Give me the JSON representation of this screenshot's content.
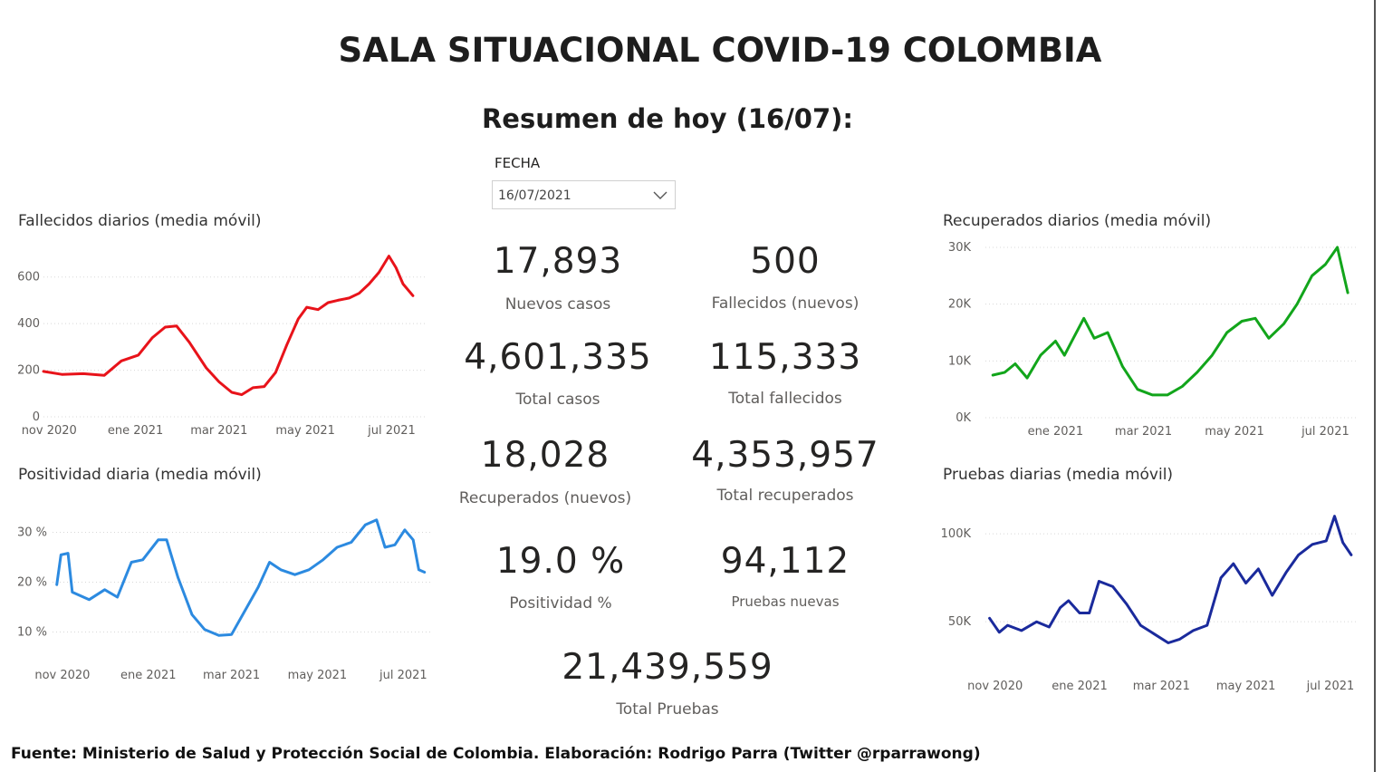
{
  "header": {
    "title": "SALA SITUACIONAL COVID-19 COLOMBIA",
    "subtitle": "Resumen de hoy (16/07):"
  },
  "filter": {
    "label": "FECHA",
    "value": "16/07/2021"
  },
  "kpis": [
    {
      "value": "17,893",
      "label": "Nuevos casos"
    },
    {
      "value": "500",
      "label": "Fallecidos (nuevos)"
    },
    {
      "value": "4,601,335",
      "label": "Total casos"
    },
    {
      "value": "115,333",
      "label": "Total fallecidos"
    },
    {
      "value": "18,028",
      "label": "Recuperados (nuevos)"
    },
    {
      "value": "4,353,957",
      "label": "Total recuperados"
    },
    {
      "value": "19.0 %",
      "label": "Positividad %"
    },
    {
      "value": "94,112",
      "label": "Pruebas nuevas"
    },
    {
      "value": "21,439,559",
      "label": "Total Pruebas"
    }
  ],
  "footer": "Fuente: Ministerio de Salud y Protección Social de Colombia. Elaboración: Rodrigo Parra (Twitter @rparrawong)",
  "chart_data": [
    {
      "type": "line",
      "title": "Fallecidos diarios (media móvil)",
      "color": "#e8131a",
      "x": [
        "2020-10-28",
        "2020-11-10",
        "2020-11-25",
        "2020-12-10",
        "2020-12-22",
        "2021-01-03",
        "2021-01-13",
        "2021-01-22",
        "2021-01-30",
        "2021-02-08",
        "2021-02-20",
        "2021-03-01",
        "2021-03-10",
        "2021-03-17",
        "2021-03-25",
        "2021-04-02",
        "2021-04-10",
        "2021-04-18",
        "2021-04-26",
        "2021-05-02",
        "2021-05-10",
        "2021-05-17",
        "2021-05-24",
        "2021-06-01",
        "2021-06-08",
        "2021-06-15",
        "2021-06-22",
        "2021-06-29",
        "2021-07-04",
        "2021-07-09",
        "2021-07-16"
      ],
      "values": [
        195,
        182,
        185,
        178,
        240,
        265,
        340,
        385,
        390,
        320,
        210,
        150,
        105,
        95,
        125,
        130,
        190,
        310,
        420,
        470,
        460,
        490,
        500,
        510,
        530,
        570,
        620,
        690,
        640,
        570,
        520
      ],
      "yticks": [
        0,
        200,
        400,
        600
      ],
      "ylim": [
        0,
        700
      ],
      "xticks": [
        "nov 2020",
        "ene 2021",
        "mar 2021",
        "may 2021",
        "jul 2021"
      ]
    },
    {
      "type": "line",
      "title": "Positividad diaria (media móvil)",
      "color": "#2c8ae0",
      "x": [
        "2020-10-28",
        "2020-10-31",
        "2020-11-05",
        "2020-11-08",
        "2020-11-20",
        "2020-12-01",
        "2020-12-10",
        "2020-12-20",
        "2020-12-28",
        "2021-01-08",
        "2021-01-14",
        "2021-01-22",
        "2021-02-01",
        "2021-02-10",
        "2021-02-20",
        "2021-03-01",
        "2021-03-10",
        "2021-03-20",
        "2021-03-28",
        "2021-04-05",
        "2021-04-15",
        "2021-04-25",
        "2021-05-05",
        "2021-05-15",
        "2021-05-25",
        "2021-06-04",
        "2021-06-12",
        "2021-06-18",
        "2021-06-25",
        "2021-07-02",
        "2021-07-08",
        "2021-07-12",
        "2021-07-16"
      ],
      "values": [
        19.5,
        25.5,
        25.8,
        18,
        16.5,
        18.5,
        17,
        24,
        24.5,
        28.5,
        28.5,
        21,
        13.5,
        10.5,
        9.3,
        9.5,
        14,
        19,
        24,
        22.5,
        21.5,
        22.5,
        24.5,
        27,
        28,
        31.5,
        32.5,
        27,
        27.5,
        30.5,
        28.5,
        22.5,
        22
      ],
      "yticks": [
        "10 %",
        "20 %",
        "30 %"
      ],
      "ytick_values": [
        10,
        20,
        30
      ],
      "ylim": [
        5,
        35
      ],
      "xticks": [
        "nov 2020",
        "ene 2021",
        "mar 2021",
        "may 2021",
        "jul 2021"
      ]
    },
    {
      "type": "line",
      "title": "Recuperados diarios (media móvil)",
      "color": "#12a51b",
      "x": [
        "2020-11-20",
        "2020-11-28",
        "2020-12-05",
        "2020-12-13",
        "2020-12-22",
        "2021-01-01",
        "2021-01-07",
        "2021-01-13",
        "2021-01-20",
        "2021-01-27",
        "2021-02-05",
        "2021-02-15",
        "2021-02-25",
        "2021-03-07",
        "2021-03-17",
        "2021-03-27",
        "2021-04-06",
        "2021-04-16",
        "2021-04-26",
        "2021-05-06",
        "2021-05-15",
        "2021-05-24",
        "2021-06-03",
        "2021-06-12",
        "2021-06-22",
        "2021-07-01",
        "2021-07-09",
        "2021-07-16"
      ],
      "values": [
        7500,
        8000,
        9500,
        7000,
        11000,
        13500,
        11000,
        14000,
        17500,
        14000,
        15000,
        9000,
        5000,
        4000,
        4000,
        5500,
        8000,
        11000,
        15000,
        17000,
        17500,
        14000,
        16500,
        20000,
        25000,
        27000,
        30000,
        22000
      ],
      "yticks": [
        "0K",
        "10K",
        "20K",
        "30K"
      ],
      "ytick_values": [
        0,
        10000,
        20000,
        30000
      ],
      "ylim": [
        0,
        30000
      ],
      "xticks": [
        "ene 2021",
        "mar 2021",
        "may 2021",
        "jul 2021"
      ]
    },
    {
      "type": "line",
      "title": "Pruebas diarias (media móvil)",
      "color": "#1a2a9c",
      "x": [
        "2020-10-28",
        "2020-11-04",
        "2020-11-10",
        "2020-11-20",
        "2020-12-01",
        "2020-12-10",
        "2020-12-18",
        "2020-12-24",
        "2021-01-01",
        "2021-01-08",
        "2021-01-15",
        "2021-01-25",
        "2021-02-04",
        "2021-02-14",
        "2021-02-24",
        "2021-03-06",
        "2021-03-14",
        "2021-03-24",
        "2021-04-03",
        "2021-04-13",
        "2021-04-22",
        "2021-05-01",
        "2021-05-10",
        "2021-05-20",
        "2021-05-30",
        "2021-06-08",
        "2021-06-18",
        "2021-06-28",
        "2021-07-04",
        "2021-07-10",
        "2021-07-16"
      ],
      "values": [
        52000,
        44000,
        48000,
        45000,
        50000,
        47000,
        58000,
        62000,
        55000,
        55000,
        73000,
        70000,
        60000,
        48000,
        43000,
        38000,
        40000,
        45000,
        48000,
        75000,
        83000,
        72000,
        80000,
        65000,
        78000,
        88000,
        94000,
        96000,
        110000,
        95000,
        88000
      ],
      "yticks": [
        "50K",
        "100K"
      ],
      "ytick_values": [
        50000,
        100000
      ],
      "ylim": [
        30000,
        115000
      ],
      "xticks": [
        "nov 2020",
        "ene 2021",
        "mar 2021",
        "may 2021",
        "jul 2021"
      ]
    }
  ]
}
